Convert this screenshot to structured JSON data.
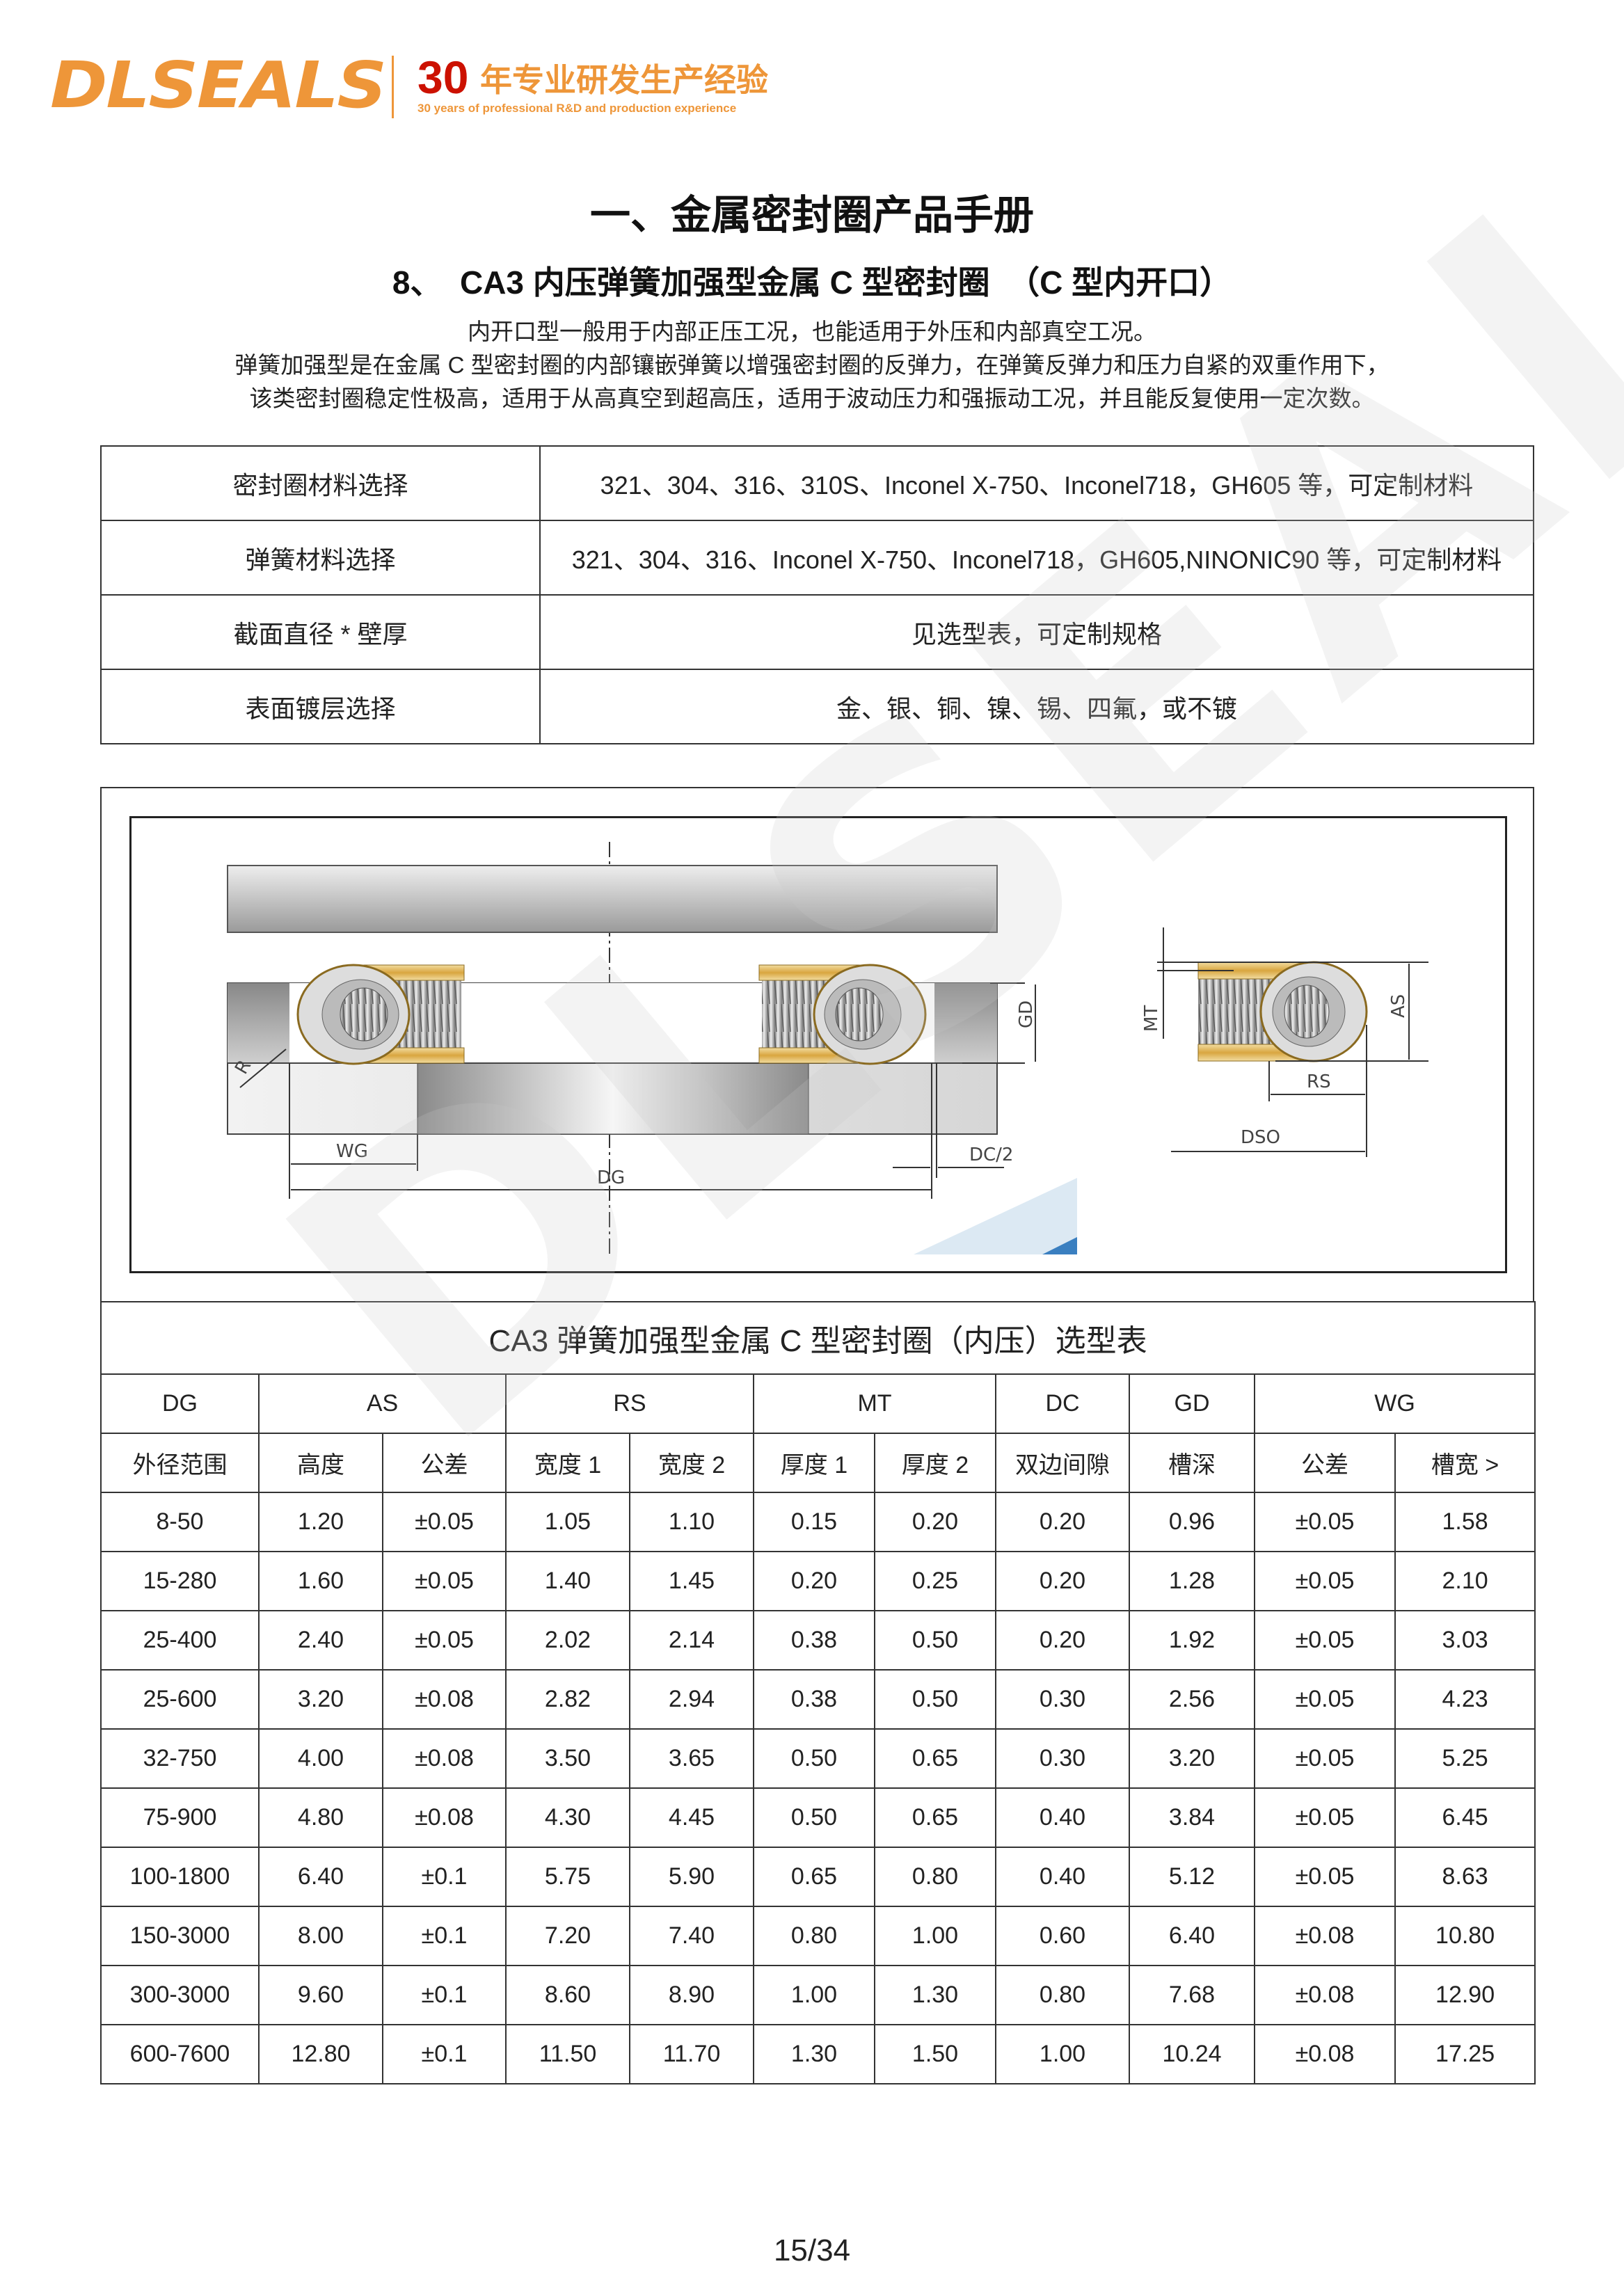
{
  "header": {
    "logo": "DLSEALS",
    "years_number": "30",
    "years_cn": "年专业研发生产经验",
    "years_en": "30 years of professional R&D and production experience",
    "brand_color": "#ee9639",
    "accent_red": "#cc1100"
  },
  "title": "一、金属密封圈产品手册",
  "subtitle": "8、  CA3 内压弹簧加强型金属 C 型密封圈  （C 型内开口）",
  "description": [
    "内开口型一般用于内部正压工况，也能适用于外压和内部真空工况。",
    "弹簧加强型是在金属 C 型密封圈的内部镶嵌弹簧以增强密封圈的反弹力，在弹簧反弹力和压力自紧的双重作用下，",
    "该类密封圈稳定性极高，适用于从高真空到超高压，适用于波动压力和强振动工况，并且能反复使用一定次数。"
  ],
  "spec_table": [
    {
      "key": "密封圈材料选择",
      "value": "321、304、316、310S、Inconel X-750、Inconel718，GH605 等，可定制材料"
    },
    {
      "key": "弹簧材料选择",
      "value": "321、304、316、Inconel X-750、Inconel718，GH605,NINONIC90 等，可定制材料"
    },
    {
      "key": "截面直径 * 壁厚",
      "value": "见选型表，可定制规格"
    },
    {
      "key": "表面镀层选择",
      "value": "金、银、铜、镍、锡、四氟，或不镀"
    }
  ],
  "diagram": {
    "labels": {
      "r": "R",
      "wg": "WG",
      "dg": "DG",
      "dc2": "DC/2",
      "gd": "GD",
      "mt": "MT",
      "as": "AS",
      "rs": "RS",
      "dso": "DSO"
    }
  },
  "selection_table": {
    "caption": "CA3  弹簧加强型金属 C 型密封圈（内压）选型表",
    "group_headers": [
      "DG",
      "AS",
      "RS",
      "MT",
      "DC",
      "GD",
      "WG"
    ],
    "sub_headers": [
      "外径范围",
      "高度",
      "公差",
      "宽度 1",
      "宽度 2",
      "厚度 1",
      "厚度 2",
      "双边间隙",
      "槽深",
      "公差",
      "槽宽 >"
    ],
    "rows": [
      [
        "8-50",
        "1.20",
        "±0.05",
        "1.05",
        "1.10",
        "0.15",
        "0.20",
        "0.20",
        "0.96",
        "±0.05",
        "1.58"
      ],
      [
        "15-280",
        "1.60",
        "±0.05",
        "1.40",
        "1.45",
        "0.20",
        "0.25",
        "0.20",
        "1.28",
        "±0.05",
        "2.10"
      ],
      [
        "25-400",
        "2.40",
        "±0.05",
        "2.02",
        "2.14",
        "0.38",
        "0.50",
        "0.20",
        "1.92",
        "±0.05",
        "3.03"
      ],
      [
        "25-600",
        "3.20",
        "±0.08",
        "2.82",
        "2.94",
        "0.38",
        "0.50",
        "0.30",
        "2.56",
        "±0.05",
        "4.23"
      ],
      [
        "32-750",
        "4.00",
        "±0.08",
        "3.50",
        "3.65",
        "0.50",
        "0.65",
        "0.30",
        "3.20",
        "±0.05",
        "5.25"
      ],
      [
        "75-900",
        "4.80",
        "±0.08",
        "4.30",
        "4.45",
        "0.50",
        "0.65",
        "0.40",
        "3.84",
        "±0.05",
        "6.45"
      ],
      [
        "100-1800",
        "6.40",
        "±0.1",
        "5.75",
        "5.90",
        "0.65",
        "0.80",
        "0.40",
        "5.12",
        "±0.05",
        "8.63"
      ],
      [
        "150-3000",
        "8.00",
        "±0.1",
        "7.20",
        "7.40",
        "0.80",
        "1.00",
        "0.60",
        "6.40",
        "±0.08",
        "10.80"
      ],
      [
        "300-3000",
        "9.60",
        "±0.1",
        "8.60",
        "8.90",
        "1.00",
        "1.30",
        "0.80",
        "7.68",
        "±0.08",
        "12.90"
      ],
      [
        "600-7600",
        "12.80",
        "±0.1",
        "11.50",
        "11.70",
        "1.30",
        "1.50",
        "1.00",
        "10.24",
        "±0.08",
        "17.25"
      ]
    ]
  },
  "watermark": "DLSEALS",
  "page_number": "15/34"
}
